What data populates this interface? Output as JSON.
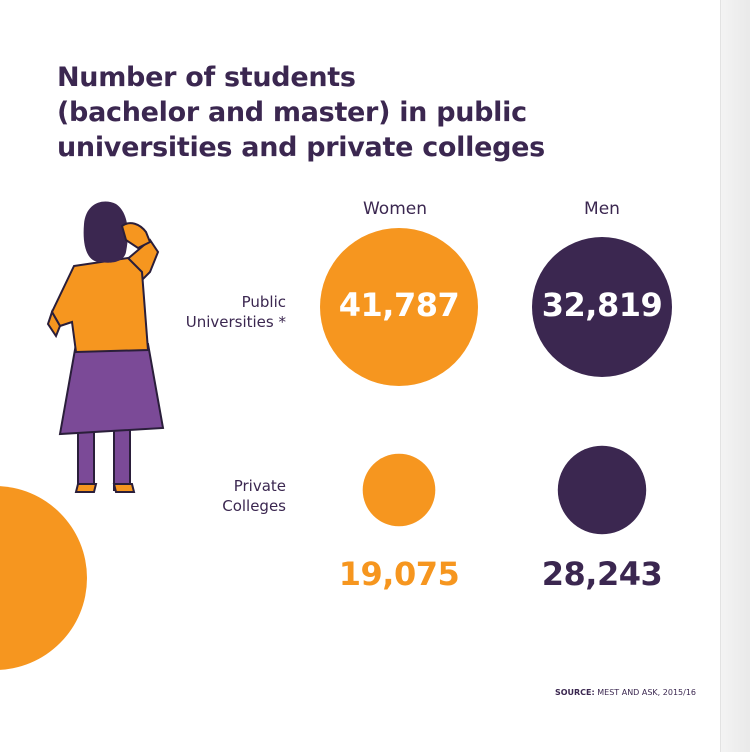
{
  "title_lines": [
    "Number of students",
    "(bachelor and master) in public",
    "universities and private colleges"
  ],
  "colors": {
    "women": "#f6961f",
    "men": "#3b2750",
    "text": "#3b2750"
  },
  "chart_data": {
    "type": "bubble",
    "title": "Number of students (bachelor and master) in public universities and private colleges",
    "columns": [
      "Women",
      "Men"
    ],
    "rows": [
      {
        "label_lines": [
          "Public",
          "Universities *"
        ],
        "label": "Public Universities *",
        "values": {
          "Women": 41787,
          "Men": 32819
        },
        "display": {
          "Women": "41,787",
          "Men": "32,819"
        }
      },
      {
        "label_lines": [
          "Private",
          "Colleges"
        ],
        "label": "Private Colleges",
        "values": {
          "Women": 19075,
          "Men": 28243
        },
        "display": {
          "Women": "19,075",
          "Men": "28,243"
        }
      }
    ]
  },
  "source": {
    "label": "SOURCE:",
    "text": "MEST AND ASK, 2015/16"
  }
}
